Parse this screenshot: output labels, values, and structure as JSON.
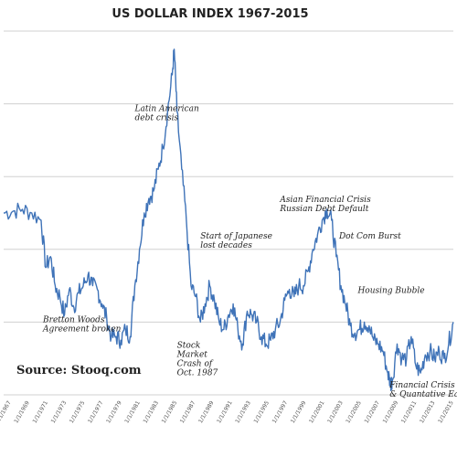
{
  "chart_data": {
    "type": "line",
    "title": "US DOLLAR INDEX   1967-2015",
    "xlabel": "",
    "ylabel": "",
    "grid": true,
    "ylim": [
      70,
      170
    ],
    "xlim": [
      1967,
      2015
    ],
    "x_tick_labels": [
      "1/1/1967",
      "1/1/1969",
      "1/1/1971",
      "1/1/1973",
      "1/1/1975",
      "1/1/1977",
      "1/1/1979",
      "1/1/1981",
      "1/1/1983",
      "1/1/1985",
      "1/1/1987",
      "1/1/1989",
      "1/1/1991",
      "1/1/1993",
      "1/1/1995",
      "1/1/1997",
      "1/1/1999",
      "1/1/2001",
      "1/1/2003",
      "1/1/2005",
      "1/1/2007",
      "1/1/2009",
      "1/1/2011",
      "1/1/2013",
      "1/1/2015"
    ],
    "series": [
      {
        "values_x": [
          1967.0,
          1968.0,
          1969.0,
          1970.0,
          1971.0,
          1971.5,
          1972.0,
          1972.5,
          1973.0,
          1973.5,
          1974.0,
          1974.5,
          1975.0,
          1975.5,
          1976.0,
          1976.5,
          1977.0,
          1977.5,
          1978.0,
          1978.5,
          1979.0,
          1979.5,
          1980.0,
          1980.5,
          1981.0,
          1981.5,
          1982.0,
          1982.5,
          1983.0,
          1983.5,
          1984.0,
          1984.5,
          1985.0,
          1985.2,
          1985.5,
          1986.0,
          1986.5,
          1987.0,
          1987.5,
          1988.0,
          1988.5,
          1989.0,
          1989.5,
          1990.0,
          1990.5,
          1991.0,
          1991.5,
          1992.0,
          1992.5,
          1993.0,
          1993.5,
          1994.0,
          1994.5,
          1995.0,
          1995.5,
          1996.0,
          1996.5,
          1997.0,
          1997.5,
          1998.0,
          1998.5,
          1999.0,
          1999.5,
          2000.0,
          2000.5,
          2001.0,
          2001.5,
          2002.0,
          2002.5,
          2003.0,
          2003.5,
          2004.0,
          2004.5,
          2005.0,
          2005.5,
          2006.0,
          2006.5,
          2007.0,
          2007.5,
          2008.0,
          2008.3,
          2008.5,
          2009.0,
          2009.5,
          2010.0,
          2010.5,
          2011.0,
          2011.5,
          2012.0,
          2012.5,
          2013.0,
          2013.5,
          2014.0,
          2014.5,
          2015.0
        ],
        "values_y": [
          120.0,
          120.5,
          121.0,
          120.0,
          118.0,
          105.0,
          108.0,
          100.0,
          97.0,
          92.0,
          99.0,
          94.0,
          98.0,
          100.0,
          103.0,
          100.0,
          99.0,
          95.0,
          91.0,
          86.0,
          86.0,
          85.0,
          88.0,
          86.0,
          100.0,
          110.0,
          120.0,
          124.0,
          126.0,
          132.0,
          138.0,
          148.0,
          158.0,
          165.0,
          148.0,
          132.0,
          118.0,
          100.0,
          97.0,
          90.0,
          95.0,
          100.0,
          96.0,
          90.0,
          88.0,
          92.0,
          95.0,
          88.0,
          84.0,
          93.0,
          92.0,
          90.0,
          86.0,
          84.0,
          85.0,
          88.0,
          90.0,
          96.0,
          99.0,
          97.0,
          100.0,
          100.0,
          104.0,
          110.0,
          114.0,
          118.0,
          121.0,
          118.0,
          108.0,
          100.0,
          95.0,
          89.0,
          87.0,
          88.0,
          90.0,
          89.0,
          85.0,
          84.0,
          82.0,
          76.0,
          73.0,
          74.0,
          84.0,
          80.0,
          80.0,
          86.0,
          78.0,
          76.0,
          81.0,
          82.0,
          80.0,
          82.0,
          80.0,
          84.0,
          90.0
        ]
      }
    ],
    "annotations": [
      {
        "lines": [
          "Bretton Woods",
          "Agreement broken"
        ],
        "x": 1971.2,
        "y": 90
      },
      {
        "lines": [
          "Latin American",
          "debt crisis"
        ],
        "x": 1981.0,
        "y": 148
      },
      {
        "lines": [
          "Start of Japanese",
          "lost decades"
        ],
        "x": 1988.0,
        "y": 113
      },
      {
        "lines": [
          "Stock",
          "Market",
          "Crash of",
          "Oct. 1987"
        ],
        "x": 1985.5,
        "y": 83
      },
      {
        "lines": [
          "Asian Financial Crisis",
          "Russian Debt Default"
        ],
        "x": 1996.5,
        "y": 123
      },
      {
        "lines": [
          "Dot Com Burst"
        ],
        "x": 2002.8,
        "y": 113
      },
      {
        "lines": [
          "Housing Bubble"
        ],
        "x": 2004.8,
        "y": 98
      },
      {
        "lines": [
          "Financial Crisis",
          "& Quantative Easing"
        ],
        "x": 2008.2,
        "y": 72
      }
    ],
    "source": "Source: Stooq.com",
    "series_color": "#3f73b8"
  }
}
